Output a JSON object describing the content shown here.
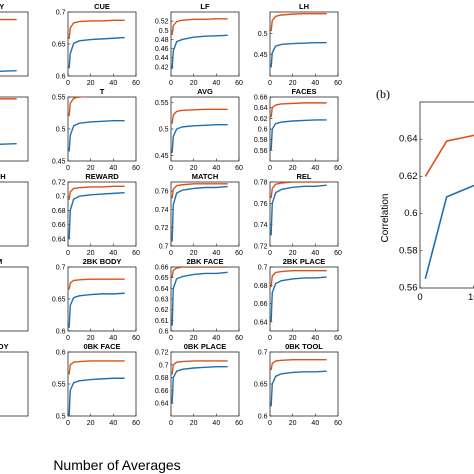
{
  "figure": {
    "xlabel": "Number of Averages",
    "panel_b_letter": "(b)",
    "panel_b_ylabel": "Correlation"
  },
  "colors": {
    "upper": "#d95319",
    "lower": "#1f6fb0"
  },
  "chart_data": [
    {
      "type": "line",
      "title": "TORY",
      "xlim": [
        0,
        60
      ],
      "ylim": [
        null,
        null
      ],
      "yticks": [],
      "x": [
        0,
        5,
        10,
        20,
        30,
        40,
        50
      ],
      "series": [
        {
          "values": [
            0.8,
            0.8,
            0.8,
            0.8,
            0.8,
            0.8,
            0.8
          ]
        },
        {
          "values": [
            0.51,
            0.515,
            0.52,
            0.522,
            0.524,
            0.526,
            0.528
          ]
        }
      ]
    },
    {
      "type": "line",
      "title": "CUE",
      "xlim": [
        0,
        60
      ],
      "xticks": [
        "0",
        "20",
        "40",
        "60"
      ],
      "ylim": [
        0.6,
        0.7
      ],
      "yticks": [
        "0.6",
        "0.65",
        "0.7"
      ],
      "x": [
        1,
        2,
        5,
        10,
        20,
        30,
        40,
        50
      ],
      "series": [
        {
          "values": [
            0.658,
            0.675,
            0.683,
            0.685,
            0.686,
            0.686,
            0.687,
            0.687
          ]
        },
        {
          "values": [
            0.612,
            0.635,
            0.651,
            0.655,
            0.657,
            0.658,
            0.659,
            0.66
          ]
        }
      ]
    },
    {
      "type": "line",
      "title": "LF",
      "xlim": [
        0,
        60
      ],
      "xticks": [
        "0",
        "20",
        "40",
        "60"
      ],
      "ylim": [
        0.4,
        0.54
      ],
      "yticks": [
        "0.42",
        "0.44",
        "0.46",
        "0.48",
        "0.5",
        "0.52"
      ],
      "x": [
        1,
        2,
        5,
        10,
        20,
        30,
        40,
        50
      ],
      "series": [
        {
          "values": [
            0.49,
            0.51,
            0.519,
            0.522,
            0.524,
            0.524,
            0.525,
            0.525
          ]
        },
        {
          "values": [
            0.415,
            0.455,
            0.475,
            0.48,
            0.485,
            0.487,
            0.488,
            0.489
          ]
        }
      ]
    },
    {
      "type": "line",
      "title": "LH",
      "xlim": [
        0,
        60
      ],
      "xticks": [
        "0",
        "20",
        "40",
        "60"
      ],
      "ylim": [
        0.4,
        0.55
      ],
      "yticks": [
        "0.45",
        "0.5"
      ],
      "x": [
        1,
        2,
        5,
        10,
        20,
        30,
        40,
        50
      ],
      "series": [
        {
          "values": [
            0.505,
            0.53,
            0.54,
            0.543,
            0.545,
            0.546,
            0.546,
            0.546
          ]
        },
        {
          "values": [
            0.42,
            0.455,
            0.47,
            0.474,
            0.476,
            0.477,
            0.478,
            0.478
          ]
        }
      ]
    },
    {
      "type": "line",
      "title": "RH",
      "xlim": [
        0,
        60
      ],
      "ylim": [
        null,
        null
      ],
      "yticks": [],
      "x": [
        0,
        5,
        10,
        20,
        30,
        40,
        50
      ],
      "series": [
        {
          "values": [
            0.83,
            0.83,
            0.83,
            0.83,
            0.83,
            0.83,
            0.83
          ]
        },
        {
          "values": [
            0.58,
            0.58,
            0.582,
            0.585,
            0.588,
            0.59,
            0.592
          ]
        }
      ]
    },
    {
      "type": "line",
      "title": "T",
      "xlim": [
        0,
        60
      ],
      "xticks": [
        "0",
        "20",
        "40",
        "60"
      ],
      "ylim": [
        0.45,
        0.55
      ],
      "yticks": [
        "0.45",
        "0.5",
        "0.55"
      ],
      "x": [
        1,
        2,
        5,
        10,
        20,
        30,
        40,
        50
      ],
      "series": [
        {
          "values": [
            0.52,
            0.54,
            0.548,
            0.55,
            0.551,
            0.551,
            0.552,
            0.552
          ]
        },
        {
          "values": [
            0.465,
            0.49,
            0.505,
            0.509,
            0.511,
            0.512,
            0.513,
            0.513
          ]
        }
      ]
    },
    {
      "type": "line",
      "title": "AVG",
      "xlim": [
        0,
        60
      ],
      "xticks": [
        "0",
        "20",
        "40",
        "60"
      ],
      "ylim": [
        0.44,
        0.56
      ],
      "yticks": [
        "0.45",
        "0.5",
        "0.55"
      ],
      "x": [
        1,
        2,
        5,
        10,
        20,
        30,
        40,
        50
      ],
      "series": [
        {
          "values": [
            0.51,
            0.526,
            0.533,
            0.535,
            0.536,
            0.537,
            0.537,
            0.537
          ]
        },
        {
          "values": [
            0.455,
            0.486,
            0.5,
            0.504,
            0.506,
            0.507,
            0.508,
            0.508
          ]
        }
      ]
    },
    {
      "type": "line",
      "title": "FACES",
      "xlim": [
        0,
        60
      ],
      "xticks": [
        "0",
        "20",
        "40",
        "60"
      ],
      "ylim": [
        0.54,
        0.66
      ],
      "yticks": [
        "0.56",
        "0.58",
        "0.6",
        "0.62",
        "0.64",
        "0.66"
      ],
      "x": [
        1,
        2,
        5,
        10,
        20,
        30,
        40,
        50
      ],
      "series": [
        {
          "values": [
            0.622,
            0.64,
            0.645,
            0.647,
            0.648,
            0.649,
            0.649,
            0.649
          ]
        },
        {
          "values": [
            0.56,
            0.6,
            0.61,
            0.613,
            0.615,
            0.616,
            0.617,
            0.617
          ]
        }
      ]
    },
    {
      "type": "line",
      "title": "UNISH",
      "xlim": [
        0,
        60
      ],
      "ylim": [
        null,
        null
      ],
      "yticks": [],
      "x": [
        0,
        5,
        10,
        20,
        30,
        40,
        50
      ],
      "series": [
        {
          "values": [
            0.895,
            0.895,
            0.895,
            0.895,
            0.895,
            0.895,
            0.895
          ]
        },
        {
          "values": [
            0.87,
            0.872,
            0.874,
            0.876,
            0.878,
            0.879,
            0.88
          ]
        }
      ]
    },
    {
      "type": "line",
      "title": "REWARD",
      "xlim": [
        0,
        60
      ],
      "xticks": [
        "0",
        "20",
        "40",
        "60"
      ],
      "ylim": [
        0.63,
        0.72
      ],
      "yticks": [
        "0.64",
        "0.66",
        "0.68",
        "0.7",
        "0.72"
      ],
      "x": [
        1,
        2,
        5,
        10,
        20,
        30,
        40,
        50
      ],
      "series": [
        {
          "values": [
            0.695,
            0.706,
            0.711,
            0.712,
            0.713,
            0.713,
            0.714,
            0.714
          ]
        },
        {
          "values": [
            0.64,
            0.68,
            0.696,
            0.7,
            0.702,
            0.703,
            0.704,
            0.705
          ]
        }
      ]
    },
    {
      "type": "line",
      "title": "MATCH",
      "xlim": [
        0,
        60
      ],
      "xticks": [
        "0",
        "20",
        "40",
        "60"
      ],
      "ylim": [
        0.7,
        0.77
      ],
      "yticks": [
        "0.7",
        "0.72",
        "0.74",
        "0.76"
      ],
      "x": [
        1,
        2,
        5,
        10,
        20,
        30,
        40,
        50
      ],
      "series": [
        {
          "values": [
            0.752,
            0.762,
            0.766,
            0.767,
            0.768,
            0.768,
            0.768,
            0.768
          ]
        },
        {
          "values": [
            0.705,
            0.745,
            0.758,
            0.761,
            0.763,
            0.764,
            0.764,
            0.765
          ]
        }
      ]
    },
    {
      "type": "line",
      "title": "REL",
      "xlim": [
        0,
        60
      ],
      "xticks": [
        "0",
        "20",
        "40",
        "60"
      ],
      "ylim": [
        0.72,
        0.78
      ],
      "yticks": [
        "0.72",
        "0.74",
        "0.76",
        "0.78"
      ],
      "x": [
        1,
        2,
        5,
        10,
        20,
        30,
        40,
        50
      ],
      "series": [
        {
          "values": [
            0.765,
            0.774,
            0.778,
            0.779,
            0.78,
            0.78,
            0.78,
            0.78
          ]
        },
        {
          "values": [
            0.73,
            0.76,
            0.77,
            0.773,
            0.775,
            0.776,
            0.776,
            0.777
          ]
        }
      ]
    },
    {
      "type": "line",
      "title": "TOM",
      "xlim": [
        0,
        60
      ],
      "ylim": [
        null,
        null
      ],
      "yticks": [],
      "x": [
        0,
        5,
        10,
        20,
        30,
        40,
        50
      ],
      "series": [
        {
          "values": [
            0.935,
            0.935,
            0.935,
            0.935,
            0.935,
            0.935,
            0.935
          ]
        },
        {
          "values": [
            0.905,
            0.906,
            0.907,
            0.908,
            0.909,
            0.91,
            0.91
          ]
        }
      ]
    },
    {
      "type": "line",
      "title": "2BK BODY",
      "xlim": [
        0,
        60
      ],
      "xticks": [
        "0",
        "20",
        "40",
        "60"
      ],
      "ylim": [
        0.6,
        0.7
      ],
      "yticks": [
        "0.6",
        "0.65",
        "0.7"
      ],
      "x": [
        1,
        2,
        5,
        10,
        20,
        30,
        40,
        50
      ],
      "series": [
        {
          "values": [
            0.665,
            0.675,
            0.679,
            0.68,
            0.681,
            0.681,
            0.681,
            0.681
          ]
        },
        {
          "values": [
            0.605,
            0.64,
            0.652,
            0.655,
            0.657,
            0.658,
            0.658,
            0.659
          ]
        }
      ]
    },
    {
      "type": "line",
      "title": "2BK FACE",
      "xlim": [
        0,
        60
      ],
      "xticks": [
        "0",
        "20",
        "40",
        "60"
      ],
      "ylim": [
        0.6,
        0.66
      ],
      "yticks": [
        "0.6",
        "0.61",
        "0.62",
        "0.63",
        "0.64",
        "0.65",
        "0.66"
      ],
      "x": [
        1,
        2,
        5,
        10,
        20,
        30,
        40,
        50
      ],
      "series": [
        {
          "values": [
            0.65,
            0.657,
            0.659,
            0.66,
            0.66,
            0.66,
            0.66,
            0.66
          ]
        },
        {
          "values": [
            0.605,
            0.64,
            0.649,
            0.651,
            0.653,
            0.654,
            0.654,
            0.655
          ]
        }
      ]
    },
    {
      "type": "line",
      "title": "2BK PLACE",
      "xlim": [
        0,
        60
      ],
      "xticks": [
        "0",
        "20",
        "40",
        "60"
      ],
      "ylim": [
        0.63,
        0.7
      ],
      "yticks": [
        "0.64",
        "0.66",
        "0.68",
        "0.7"
      ],
      "x": [
        1,
        2,
        5,
        10,
        20,
        30,
        40,
        50
      ],
      "series": [
        {
          "values": [
            0.678,
            0.69,
            0.694,
            0.695,
            0.696,
            0.696,
            0.696,
            0.696
          ]
        },
        {
          "values": [
            0.64,
            0.672,
            0.682,
            0.685,
            0.687,
            0.688,
            0.688,
            0.689
          ]
        }
      ]
    },
    {
      "type": "line",
      "title": "K BODY",
      "xlim": [
        0,
        60
      ],
      "ylim": [
        null,
        null
      ],
      "yticks": [],
      "x": [
        0,
        5,
        10,
        20,
        30,
        40,
        50
      ],
      "series": [
        {
          "values": [
            0.955,
            0.955,
            0.955,
            0.955,
            0.955,
            0.955,
            0.955
          ]
        },
        {
          "values": [
            0.93,
            0.93,
            0.931,
            0.932,
            0.932,
            0.933,
            0.933
          ]
        }
      ]
    },
    {
      "type": "line",
      "title": "0BK FACE",
      "xlim": [
        0,
        60
      ],
      "xticks": [
        "0",
        "20",
        "40",
        "60"
      ],
      "ylim": [
        0.5,
        0.6
      ],
      "yticks": [
        "0.5",
        "0.55",
        "0.6"
      ],
      "x": [
        1,
        2,
        5,
        10,
        20,
        30,
        40,
        50
      ],
      "series": [
        {
          "values": [
            0.565,
            0.58,
            0.584,
            0.585,
            0.586,
            0.586,
            0.586,
            0.586
          ]
        },
        {
          "values": [
            0.5,
            0.54,
            0.552,
            0.555,
            0.557,
            0.558,
            0.559,
            0.559
          ]
        }
      ]
    },
    {
      "type": "line",
      "title": "0BK PLACE",
      "xlim": [
        0,
        60
      ],
      "xticks": [
        "0",
        "20",
        "40",
        "60"
      ],
      "ylim": [
        0.62,
        0.72
      ],
      "yticks": [
        "0.64",
        "0.66",
        "0.68",
        "0.7",
        "0.72"
      ],
      "x": [
        1,
        2,
        5,
        10,
        20,
        30,
        40,
        50
      ],
      "series": [
        {
          "values": [
            0.685,
            0.7,
            0.704,
            0.705,
            0.706,
            0.706,
            0.706,
            0.706
          ]
        },
        {
          "values": [
            0.64,
            0.68,
            0.69,
            0.693,
            0.695,
            0.696,
            0.697,
            0.697
          ]
        }
      ]
    },
    {
      "type": "line",
      "title": "0BK TOOL",
      "xlim": [
        0,
        60
      ],
      "xticks": [
        "0",
        "20",
        "40",
        "60"
      ],
      "ylim": [
        0.6,
        0.7
      ],
      "yticks": [
        "0.6",
        "0.65",
        "0.7"
      ],
      "x": [
        1,
        2,
        5,
        10,
        20,
        30,
        40,
        50
      ],
      "series": [
        {
          "values": [
            0.672,
            0.682,
            0.686,
            0.687,
            0.688,
            0.688,
            0.688,
            0.688
          ]
        },
        {
          "values": [
            0.615,
            0.65,
            0.662,
            0.666,
            0.668,
            0.669,
            0.669,
            0.67
          ]
        }
      ]
    },
    {
      "type": "line",
      "title": "",
      "xlim": [
        0,
        15
      ],
      "xticks": [
        "0",
        "10"
      ],
      "ylim": [
        0.56,
        0.66
      ],
      "yticks": [
        "0.56",
        "0.58",
        "0.6",
        "0.62",
        "0.64"
      ],
      "ylabel": "Correlation",
      "x": [
        1,
        5,
        10,
        15
      ],
      "series": [
        {
          "values": [
            0.62,
            0.639,
            0.642,
            0.643
          ]
        },
        {
          "values": [
            0.565,
            0.609,
            0.615,
            0.617
          ]
        }
      ]
    }
  ]
}
